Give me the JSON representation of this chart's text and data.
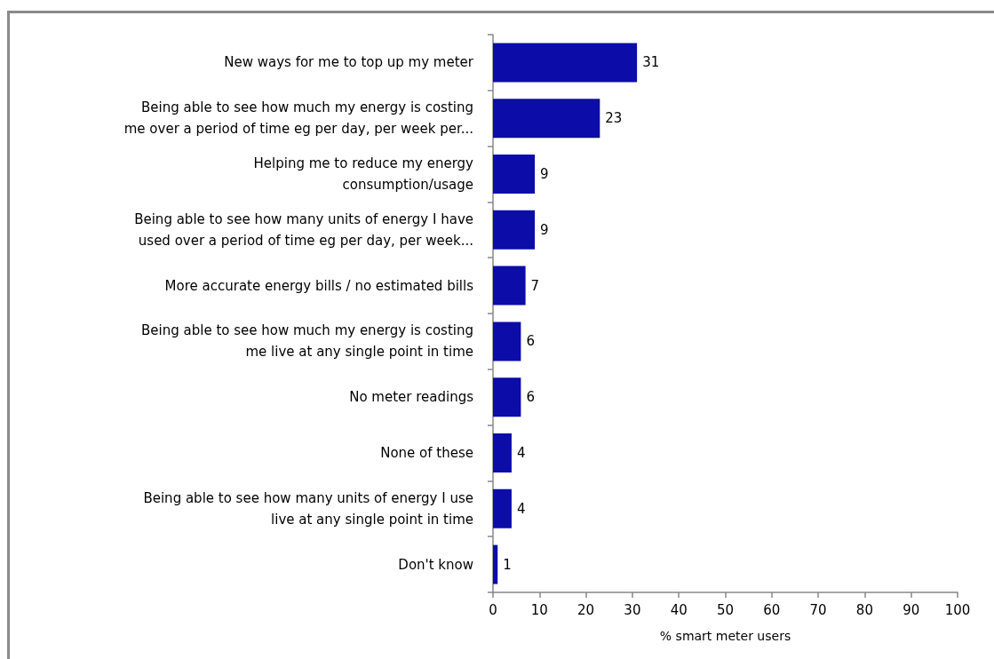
{
  "chart_data": {
    "type": "bar",
    "orientation": "horizontal",
    "categories": [
      "New ways for me to top up my meter",
      "Being able to see how much my energy is costing\nme over a period of time eg per day, per week per...",
      "Helping me to reduce my energy\nconsumption/usage",
      "Being able to see how many units of energy I have\nused over a period of time eg per day, per week...",
      "More accurate energy bills / no estimated bills",
      "Being able to see how much my energy is costing\nme live at any single point in time",
      "No meter readings",
      "None of these",
      "Being able to see how many units of energy I use\nlive at any single point in time",
      "Don't know"
    ],
    "values": [
      31,
      23,
      9,
      9,
      7,
      6,
      6,
      4,
      4,
      1
    ],
    "color": "#0c0ca8",
    "data_labels": true,
    "xlim": [
      0,
      100
    ],
    "xticks": [
      0,
      10,
      20,
      30,
      40,
      50,
      60,
      70,
      80,
      90,
      100
    ],
    "xlabel": "% smart meter users"
  }
}
